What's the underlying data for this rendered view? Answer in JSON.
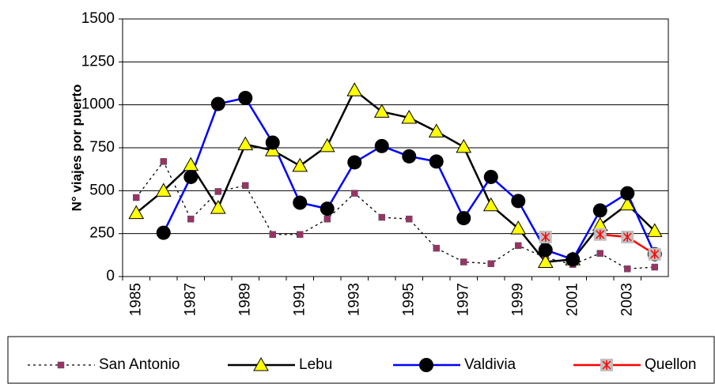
{
  "chart_data": {
    "type": "line",
    "y_label": "N° viajes por puerto",
    "categories": [
      "1985",
      null,
      "1987",
      null,
      "1989",
      null,
      "1991",
      null,
      "1993",
      null,
      "1995",
      null,
      "1997",
      null,
      "1999",
      null,
      "2001",
      null,
      "2003",
      null
    ],
    "ylim": [
      0,
      1500
    ],
    "yticks": [
      0,
      250,
      500,
      750,
      1000,
      1250,
      1500
    ],
    "grid": true,
    "series": [
      {
        "name": "San Antonio",
        "color": "#000000",
        "dash": true,
        "marker": "square",
        "marker_color": "#993366",
        "values": [
          460,
          670,
          335,
          495,
          530,
          245,
          245,
          335,
          485,
          345,
          335,
          165,
          85,
          75,
          180,
          110,
          70,
          135,
          45,
          55
        ]
      },
      {
        "name": "Lebu",
        "color": "#000000",
        "dash": false,
        "marker": "triangle",
        "marker_color": "#ffff00",
        "values": [
          370,
          500,
          650,
          400,
          770,
          735,
          645,
          760,
          1085,
          960,
          925,
          845,
          755,
          415,
          280,
          85,
          100,
          300,
          420,
          265
        ]
      },
      {
        "name": "Valdivia",
        "color": "#0000ff",
        "dash": false,
        "marker": "circle",
        "marker_color": "#000000",
        "values": [
          null,
          255,
          580,
          1005,
          1040,
          780,
          430,
          395,
          665,
          760,
          700,
          670,
          340,
          580,
          440,
          155,
          100,
          385,
          485,
          130
        ]
      },
      {
        "name": "Quellon",
        "color": "#ff0000",
        "dash": false,
        "marker": "star",
        "marker_color": "#c0c0c0",
        "values": [
          null,
          null,
          null,
          null,
          null,
          null,
          null,
          null,
          null,
          null,
          null,
          null,
          null,
          null,
          null,
          230,
          null,
          245,
          230,
          130
        ]
      }
    ]
  }
}
